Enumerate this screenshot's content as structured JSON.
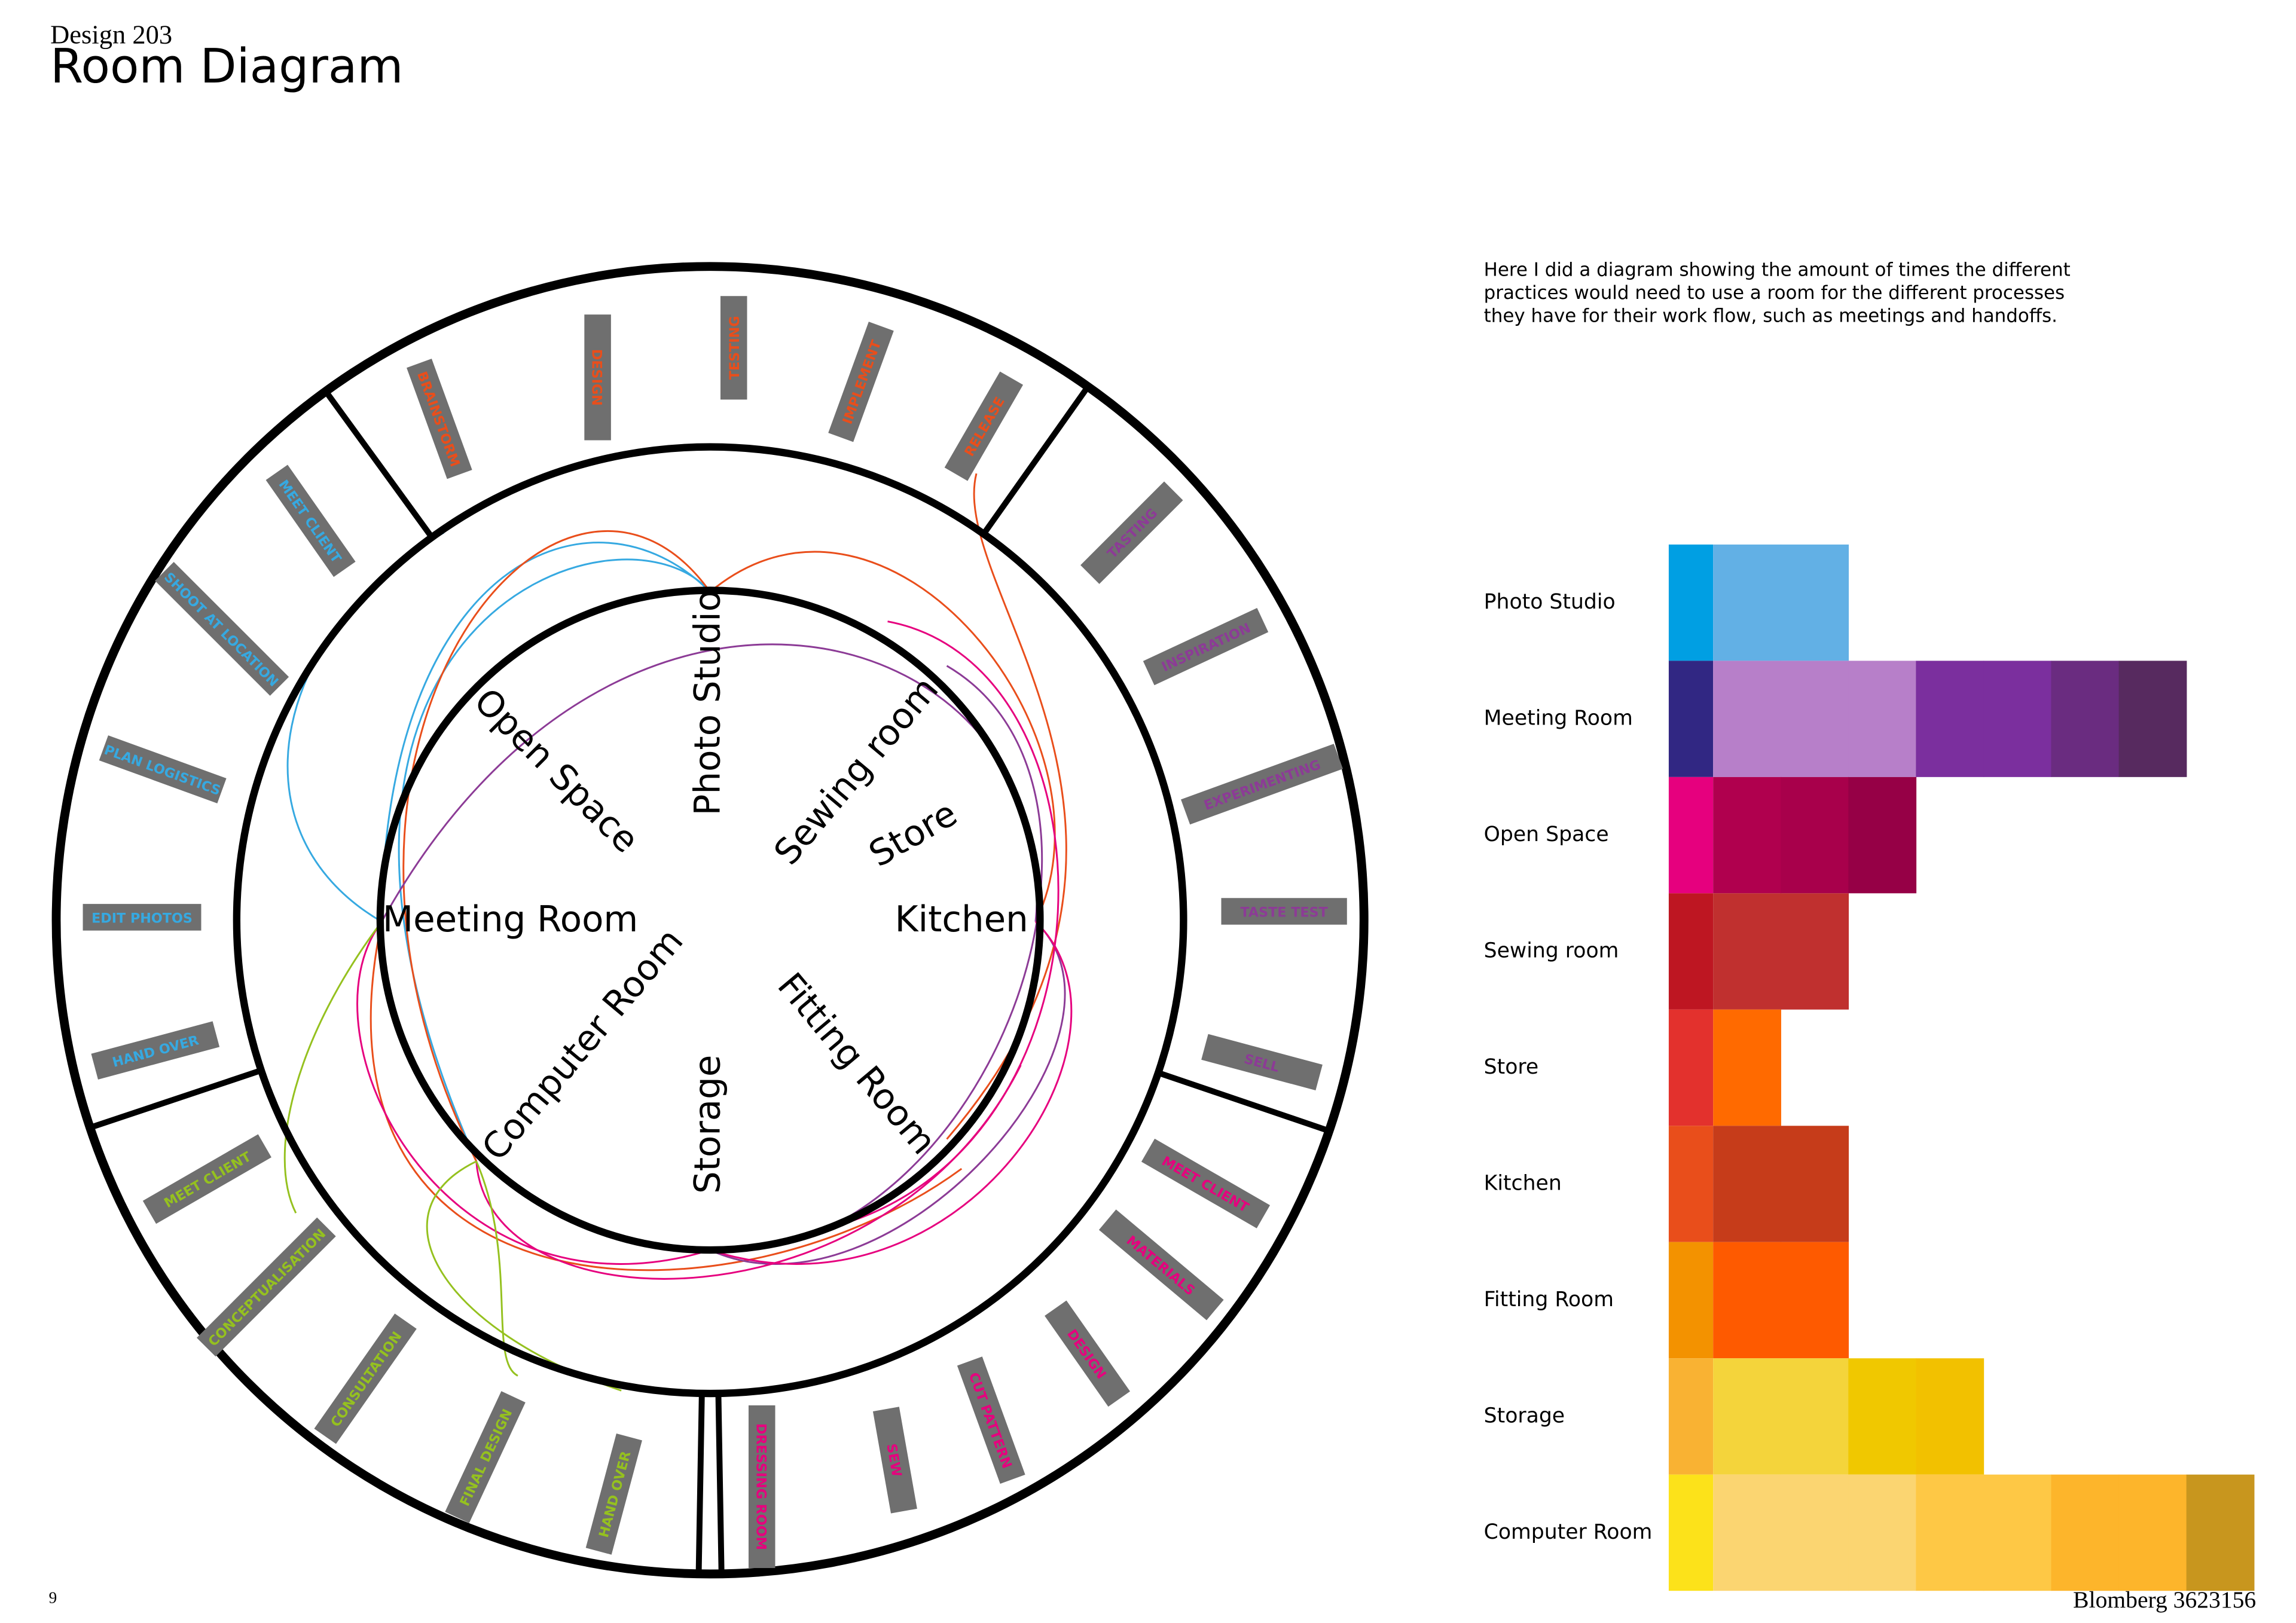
{
  "header": {
    "course": "Design 203",
    "title": "Room Diagram"
  },
  "description": [
    "Here I did a diagram showing the amount of times the different",
    "practices would need to use a room for the different processes",
    "they have for their work flow, such as meetings and handoffs."
  ],
  "diagram": {
    "rooms": [
      "Photo Studio",
      "Sewing room",
      "Store",
      "Kitchen",
      "Fitting Room",
      "Storage",
      "Computer Room",
      "Meeting Room",
      "Open Space"
    ],
    "activities": [
      {
        "label": "BRAINSTORM",
        "color": "#e94e1b"
      },
      {
        "label": "DESIGN",
        "color": "#e94e1b"
      },
      {
        "label": "TESTING",
        "color": "#e94e1b"
      },
      {
        "label": "IMPLEMENT",
        "color": "#e94e1b"
      },
      {
        "label": "RELEASE",
        "color": "#e94e1b"
      },
      {
        "label": "TASTING",
        "color": "#8c3b96"
      },
      {
        "label": "INSPIRATION",
        "color": "#8c3b96"
      },
      {
        "label": "EXPERIMENTING",
        "color": "#8c3b96"
      },
      {
        "label": "TASTE TEST",
        "color": "#8c3b96"
      },
      {
        "label": "SELL",
        "color": "#8c3b96"
      },
      {
        "label": "MEET CLIENT",
        "color": "#e6007e"
      },
      {
        "label": "MATERIALS",
        "color": "#e6007e"
      },
      {
        "label": "DESIGN",
        "color": "#e6007e"
      },
      {
        "label": "CUT PATTERN",
        "color": "#e6007e"
      },
      {
        "label": "SEW",
        "color": "#e6007e"
      },
      {
        "label": "DRESSING ROOM",
        "color": "#e6007e"
      },
      {
        "label": "MEET CLIENT",
        "color": "#95c11f"
      },
      {
        "label": "CONCEPTUALISATION",
        "color": "#95c11f"
      },
      {
        "label": "CONSULTATION",
        "color": "#95c11f"
      },
      {
        "label": "FINAL DESIGN",
        "color": "#95c11f"
      },
      {
        "label": "HAND OVER",
        "color": "#95c11f"
      },
      {
        "label": "MEET CLIENT",
        "color": "#36a9e1"
      },
      {
        "label": "SHOOT AT LOCATION",
        "color": "#36a9e1"
      },
      {
        "label": "PLAN LOGISTICS",
        "color": "#36a9e1"
      },
      {
        "label": "EDIT PHOTOS",
        "color": "#36a9e1"
      },
      {
        "label": "HAND OVER",
        "color": "#36a9e1"
      }
    ]
  },
  "usage": {
    "rows": [
      {
        "room": "Photo Studio",
        "color": "#009fe3",
        "segments": [
          "#62b0e5",
          "#62b0e5"
        ]
      },
      {
        "room": "Meeting Room",
        "color": "#312783",
        "segments": [
          "#b77fc9",
          "#b77fc9",
          "#b77fc9",
          "#7b2f9e",
          "#7b2f9e",
          "#6a2c80",
          "#572a5f"
        ]
      },
      {
        "room": "Open Space",
        "color": "#e6007e",
        "segments": [
          "#b0004e",
          "#a8004b",
          "#960046"
        ]
      },
      {
        "room": "Sewing room",
        "color": "#be1622",
        "segments": [
          "#c0302f",
          "#c0302f"
        ]
      },
      {
        "room": "Store",
        "color": "#e3312d",
        "segments": [
          "#ff6a00"
        ]
      },
      {
        "room": "Kitchen",
        "color": "#e94e1b",
        "segments": [
          "#c63c1a",
          "#c63c1a"
        ]
      },
      {
        "room": "Fitting Room",
        "color": "#f39200",
        "segments": [
          "#fe5a00",
          "#fe5a00"
        ]
      },
      {
        "room": "Storage",
        "color": "#f9b233",
        "segments": [
          "#f4d43b",
          "#f4d43b",
          "#f0c800",
          "#f2c100"
        ]
      },
      {
        "room": "Computer Room",
        "color": "#fce21a",
        "segments": [
          "#fbd571",
          "#fbd571",
          "#fbd571",
          "#fec845",
          "#fec845",
          "#fdb52b",
          "#fdb52b",
          "#c8961e"
        ]
      }
    ]
  },
  "footer": {
    "page": 9,
    "author": "Blomberg 3623156"
  }
}
